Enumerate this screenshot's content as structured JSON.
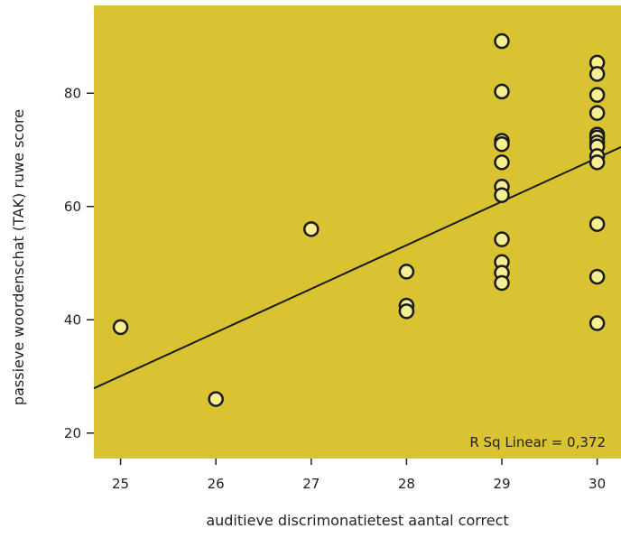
{
  "chart_data": {
    "type": "scatter",
    "title": "",
    "xlabel": "auditieve discrimonatietest aantal correct",
    "ylabel": "passieve woordenschat (TAK) ruwe score",
    "xlim": [
      24.72,
      30.25
    ],
    "ylim": [
      15.5,
      95.5
    ],
    "x_ticks": [
      25,
      26,
      27,
      28,
      29,
      30
    ],
    "y_ticks": [
      20,
      40,
      60,
      80
    ],
    "grid": false,
    "background_color": "#d9c330",
    "marker_fill": "#f6ef8f",
    "marker_edge": "#1a1a1a",
    "fit_line": {
      "type": "linear",
      "x": [
        24.72,
        30.25
      ],
      "y": [
        27.9,
        70.5
      ],
      "color": "#1a1a1a"
    },
    "annotation": "R Sq Linear = 0,372",
    "points": [
      {
        "x": 25,
        "y": 38.7
      },
      {
        "x": 26,
        "y": 26.0
      },
      {
        "x": 27,
        "y": 56.0
      },
      {
        "x": 28,
        "y": 48.5
      },
      {
        "x": 28,
        "y": 42.5
      },
      {
        "x": 28,
        "y": 41.5
      },
      {
        "x": 29,
        "y": 89.2
      },
      {
        "x": 29,
        "y": 80.3
      },
      {
        "x": 29,
        "y": 71.6
      },
      {
        "x": 29,
        "y": 71.0
      },
      {
        "x": 29,
        "y": 67.8
      },
      {
        "x": 29,
        "y": 63.5
      },
      {
        "x": 29,
        "y": 62.0
      },
      {
        "x": 29,
        "y": 54.2
      },
      {
        "x": 29,
        "y": 50.2
      },
      {
        "x": 29,
        "y": 48.3
      },
      {
        "x": 29,
        "y": 46.5
      },
      {
        "x": 30,
        "y": 85.4
      },
      {
        "x": 30,
        "y": 83.4
      },
      {
        "x": 30,
        "y": 79.7
      },
      {
        "x": 30,
        "y": 76.5
      },
      {
        "x": 30,
        "y": 72.7
      },
      {
        "x": 30,
        "y": 72.2
      },
      {
        "x": 30,
        "y": 71.3
      },
      {
        "x": 30,
        "y": 70.6
      },
      {
        "x": 30,
        "y": 68.9
      },
      {
        "x": 30,
        "y": 67.8
      },
      {
        "x": 30,
        "y": 56.9
      },
      {
        "x": 30,
        "y": 47.6
      },
      {
        "x": 30,
        "y": 39.4
      }
    ]
  }
}
